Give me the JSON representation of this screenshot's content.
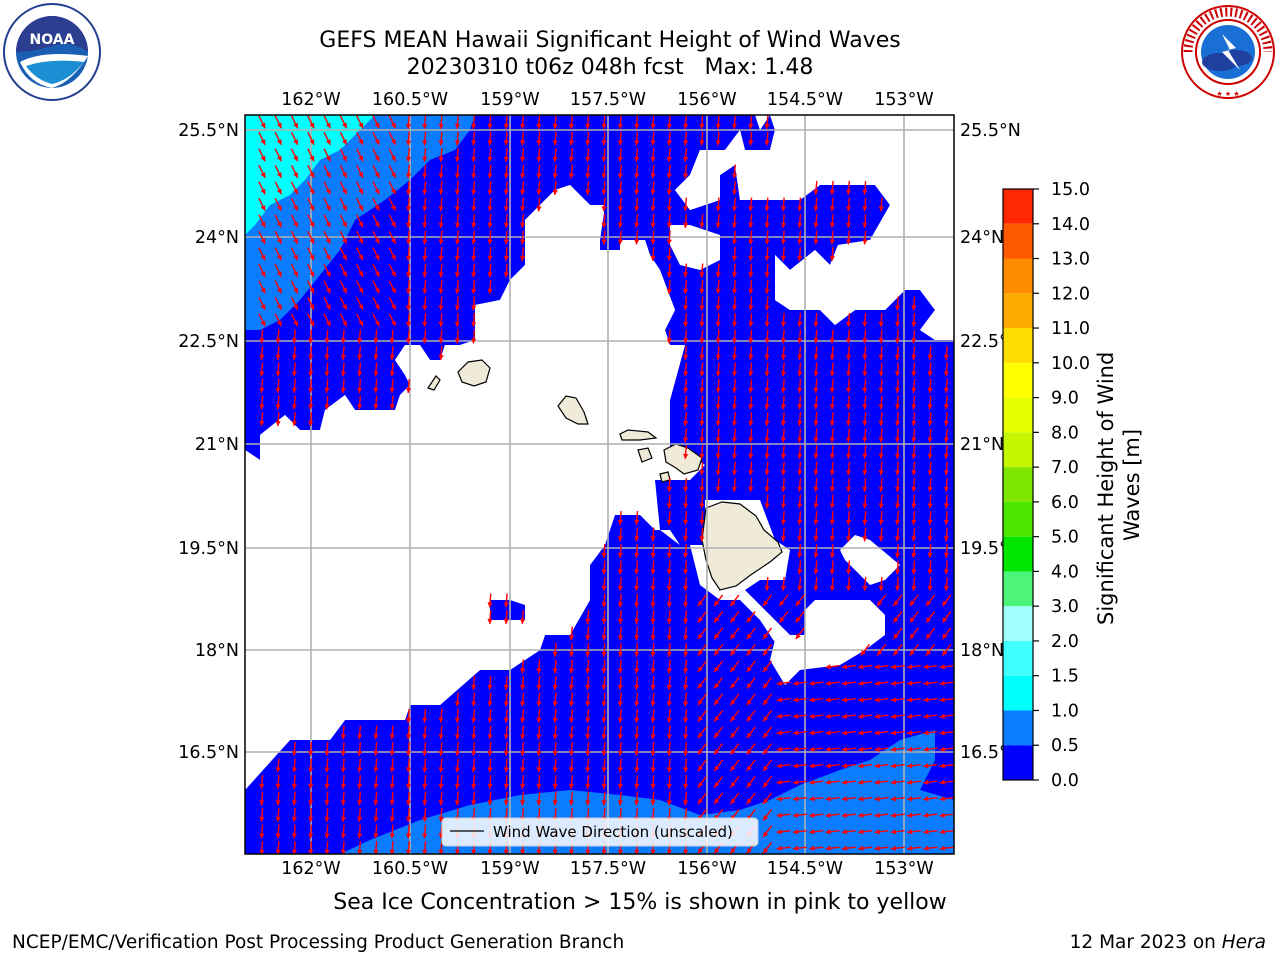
{
  "header": {
    "title": "GEFS MEAN Hawaii Significant Height of Wind Waves",
    "subtitle": "20230310 t06z 048h fcst   Max: 1.48"
  },
  "logos": {
    "left": {
      "name": "NOAA",
      "label": "NOAA",
      "ring_text": "NATIONAL OCEANIC AND ATMOSPHERIC ADMINISTRATION · U.S. DEPARTMENT OF COMMERCE"
    },
    "right": {
      "name": "National Weather Service",
      "ring_text": "NATIONAL WEATHER SERVICE"
    }
  },
  "map": {
    "lon_labels": [
      "162°W",
      "160.5°W",
      "159°W",
      "157.5°W",
      "156°W",
      "154.5°W",
      "153°W"
    ],
    "lat_labels_left": [
      "25.5°N",
      "24°N",
      "22.5°N",
      "21°N",
      "19.5°N",
      "18°N",
      "16.5°N"
    ],
    "lat_labels_right": [
      "25.5°N",
      "24°N",
      "22.5°N",
      "21°N",
      "19.5°N",
      "18°N",
      "16.5°N"
    ],
    "legend_label": "Wind Wave Direction (unscaled)",
    "colors": {
      "wave_0_0_5": "#0000ff",
      "wave_0_5_1_0": "#0a7cff",
      "wave_1_0_1_5": "#00ffff",
      "arrows": "#ff0000",
      "land": "#efebd8",
      "grid": "#b0b0b0"
    }
  },
  "colorbar": {
    "label": "Significant Height of Wind Waves [m]",
    "tick_labels": [
      "0.0",
      "0.5",
      "1.0",
      "1.5",
      "2.0",
      "3.0",
      "4.0",
      "5.0",
      "6.0",
      "7.0",
      "8.0",
      "9.0",
      "10.0",
      "11.0",
      "12.0",
      "13.0",
      "14.0",
      "15.0"
    ],
    "colors": [
      "#0000ff",
      "#0a7cff",
      "#00ffff",
      "#40ffff",
      "#a0ffff",
      "#4cf57a",
      "#00e600",
      "#4ce600",
      "#7fe600",
      "#c6f500",
      "#e8ff00",
      "#ffff00",
      "#ffdc00",
      "#ffaa00",
      "#ff8c00",
      "#ff5a00",
      "#ff2800"
    ]
  },
  "caption": "Sea Ice Concentration > 15% is shown in pink to yellow",
  "footer": {
    "left": "NCEP/EMC/Verification Post Processing Product Generation Branch",
    "right_prefix": "12 Mar 2023 on ",
    "right_host": "Hera"
  }
}
